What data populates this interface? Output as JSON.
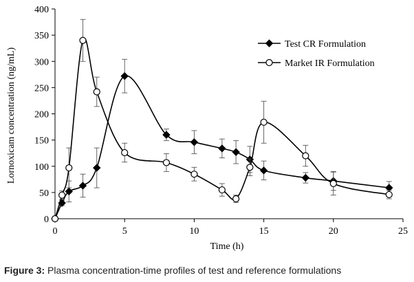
{
  "caption": {
    "label": "Figure 3:",
    "text": " Plasma concentration-time profiles of test and reference formulations"
  },
  "chart_data": {
    "type": "line",
    "xlabel": "Time (h)",
    "ylabel": "Lornoxicam concentration (ng/mL)",
    "xlim": [
      0,
      25
    ],
    "ylim": [
      0,
      400
    ],
    "xticks": [
      "0",
      "5",
      "10",
      "15",
      "20",
      "25"
    ],
    "yticks": [
      "0",
      "50",
      "100",
      "150",
      "200",
      "250",
      "300",
      "350",
      "400"
    ],
    "grid": false,
    "legend_position": "top-right",
    "series": [
      {
        "name": "Test CR Formulation",
        "marker": "filled-diamond",
        "color": "#000000",
        "points": [
          {
            "x": 0,
            "y": 0,
            "err": 0
          },
          {
            "x": 0.5,
            "y": 30,
            "err": 5
          },
          {
            "x": 1,
            "y": 52,
            "err": 20
          },
          {
            "x": 2,
            "y": 63,
            "err": 22
          },
          {
            "x": 3,
            "y": 97,
            "err": 38
          },
          {
            "x": 5,
            "y": 272,
            "err": 32
          },
          {
            "x": 8,
            "y": 160,
            "err": 11
          },
          {
            "x": 10,
            "y": 146,
            "err": 22
          },
          {
            "x": 12,
            "y": 134,
            "err": 18
          },
          {
            "x": 13,
            "y": 127,
            "err": 22
          },
          {
            "x": 14,
            "y": 113,
            "err": 25
          },
          {
            "x": 15,
            "y": 92,
            "err": 18
          },
          {
            "x": 18,
            "y": 78,
            "err": 10
          },
          {
            "x": 20,
            "y": 72,
            "err": 18
          },
          {
            "x": 24,
            "y": 59,
            "err": 12
          }
        ]
      },
      {
        "name": "Market IR Formulation",
        "marker": "open-circle",
        "color": "#000000",
        "points": [
          {
            "x": 0,
            "y": 0,
            "err": 0
          },
          {
            "x": 0.5,
            "y": 45,
            "err": 8
          },
          {
            "x": 1,
            "y": 97,
            "err": 38
          },
          {
            "x": 2,
            "y": 340,
            "err": 40
          },
          {
            "x": 3,
            "y": 242,
            "err": 28
          },
          {
            "x": 5,
            "y": 126,
            "err": 18
          },
          {
            "x": 8,
            "y": 107,
            "err": 17
          },
          {
            "x": 10,
            "y": 85,
            "err": 13
          },
          {
            "x": 12,
            "y": 55,
            "err": 12
          },
          {
            "x": 13,
            "y": 38,
            "err": 7
          },
          {
            "x": 14,
            "y": 98,
            "err": 16
          },
          {
            "x": 15,
            "y": 184,
            "err": 40
          },
          {
            "x": 18,
            "y": 120,
            "err": 20
          },
          {
            "x": 20,
            "y": 67,
            "err": 22
          },
          {
            "x": 24,
            "y": 46,
            "err": 8
          }
        ]
      }
    ]
  }
}
